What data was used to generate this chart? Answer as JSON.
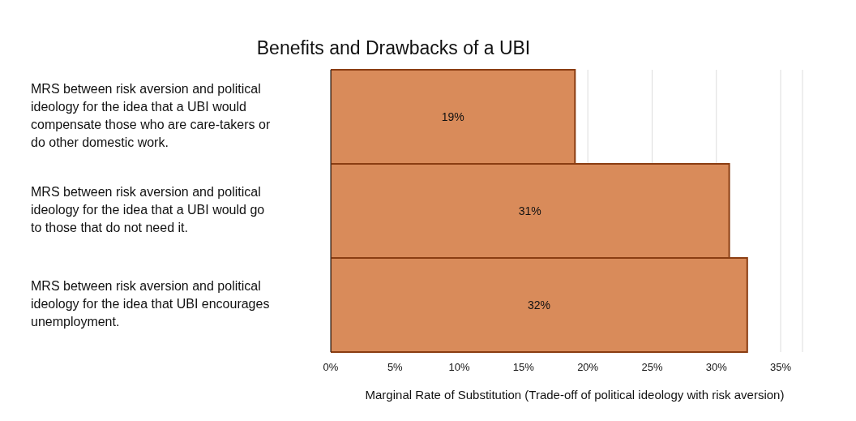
{
  "chart_data": {
    "type": "bar",
    "orientation": "horizontal",
    "title": "Benefits and Drawbacks of a UBI",
    "xlabel": "Marginal Rate of Substitution (Trade-off of political ideology with risk aversion)",
    "categories": [
      "MRS between risk aversion and political ideology for the idea that a UBI would compensate those who are care-takers or do other domestic work.",
      "MRS between risk aversion and political ideology for the idea that a UBI would go to those that do not need it.",
      "MRS between risk aversion and political ideology for the idea that UBI encourages unemployment."
    ],
    "values": [
      19,
      31,
      32.4
    ],
    "value_labels": [
      "19%",
      "31%",
      "32%"
    ],
    "color": "#d98b5a",
    "xlim": [
      0,
      36.7
    ],
    "xticks": [
      {
        "value": 0,
        "label": "0%"
      },
      {
        "value": 5,
        "label": "5%"
      },
      {
        "value": 10,
        "label": "10%"
      },
      {
        "value": 15,
        "label": "15%"
      },
      {
        "value": 20,
        "label": "20%"
      },
      {
        "value": 25,
        "label": "25%"
      },
      {
        "value": 30,
        "label": "30%"
      },
      {
        "value": 35,
        "label": "35%"
      }
    ],
    "grid": "x",
    "legend": false
  }
}
